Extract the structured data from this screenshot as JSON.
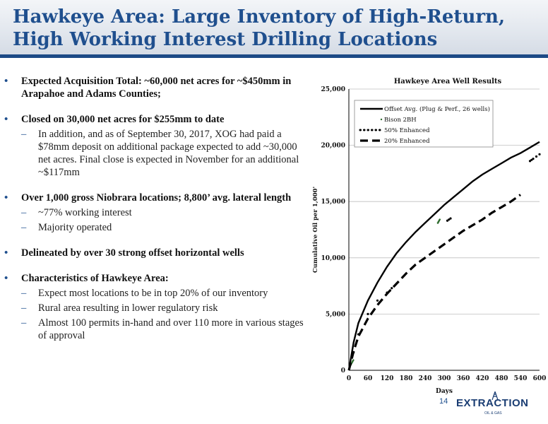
{
  "title": "Hawkeye Area: Large Inventory of High-Return, High Working Interest Drilling Locations",
  "bullets": [
    {
      "text": "Expected Acquisition Total: ~60,000 net acres for ~$450mm in Arapahoe and Adams Counties;",
      "subs": []
    },
    {
      "text": "Closed on 30,000 net acres for $255mm to date",
      "subs": [
        "In addition, and as of September 30, 2017, XOG had paid a $78mm deposit on additional package expected to add ~30,000 net acres. Final close is expected in November for an additional ~$117mm"
      ]
    },
    {
      "text": "Over 1,000 gross Niobrara locations; 8,800’ avg. lateral length",
      "subs": [
        "~77% working interest",
        "Majority operated"
      ]
    },
    {
      "text": "Delineated by over 30 strong offset horizontal wells",
      "subs": []
    },
    {
      "text": "Characteristics of Hawkeye Area:",
      "subs": [
        "Expect most locations to be in top 20% of our inventory",
        "Rural area resulting in lower regulatory risk",
        "Almost 100 permits in-hand and over 110 more in various stages of approval"
      ]
    }
  ],
  "page_number": "14",
  "logo": {
    "name": "EXTRACTION",
    "sub": "OIL & GAS"
  },
  "chart_data": {
    "type": "line",
    "title": "Hawkeye Area Well Results",
    "xlabel": "Days",
    "ylabel": "Cumulative Oil per 1,000'",
    "xlim": [
      0,
      600
    ],
    "ylim": [
      0,
      25000
    ],
    "xticks": [
      0,
      60,
      120,
      180,
      240,
      300,
      360,
      420,
      480,
      540,
      600
    ],
    "yticks": [
      0,
      5000,
      10000,
      15000,
      20000,
      25000
    ],
    "ytick_labels": [
      "0",
      "5,000",
      "10,000",
      "15,000",
      "20,000",
      "25,000"
    ],
    "grid": "horizontal",
    "legend_position": "top-left",
    "series": [
      {
        "name": "Offset Avg. (Plug & Perf., 26 wells)",
        "color": "#000000",
        "style": "solid",
        "x": [
          0,
          15,
          30,
          60,
          90,
          120,
          150,
          180,
          210,
          240,
          270,
          300,
          330,
          360,
          390,
          420,
          450,
          480,
          510,
          540,
          570,
          600
        ],
        "y": [
          0,
          2500,
          4200,
          6200,
          7800,
          9200,
          10400,
          11400,
          12300,
          13100,
          13900,
          14700,
          15400,
          16100,
          16800,
          17400,
          17900,
          18400,
          18900,
          19300,
          19800,
          20300
        ]
      },
      {
        "name": "Bison 2BH",
        "color": "#2e6b2e",
        "style": "dots",
        "x": [
          2,
          4,
          6,
          8,
          10,
          12,
          14,
          280,
          282,
          284,
          286
        ],
        "y": [
          200,
          350,
          500,
          600,
          700,
          800,
          900,
          13100,
          13200,
          13300,
          13400
        ]
      },
      {
        "name": "50% Enhanced",
        "color": "#000000",
        "style": "dotted",
        "x": [
          5,
          15,
          30,
          60,
          90,
          120,
          130,
          135,
          310,
          315,
          320,
          570,
          575,
          580,
          590,
          600
        ],
        "y": [
          500,
          1600,
          3200,
          5000,
          6200,
          6900,
          7100,
          7300,
          13300,
          13400,
          13500,
          18600,
          18700,
          18800,
          19000,
          19200
        ]
      },
      {
        "name": "20% Enhanced",
        "color": "#000000",
        "style": "dashed",
        "x": [
          0,
          15,
          30,
          60,
          90,
          120,
          150,
          180,
          210,
          240,
          270,
          300,
          330,
          360,
          390,
          420,
          450,
          480,
          510,
          540
        ],
        "y": [
          0,
          1700,
          3000,
          4600,
          5800,
          6800,
          7700,
          8600,
          9400,
          10000,
          10600,
          11200,
          11800,
          12400,
          12900,
          13400,
          14000,
          14500,
          15000,
          15600
        ]
      }
    ]
  }
}
